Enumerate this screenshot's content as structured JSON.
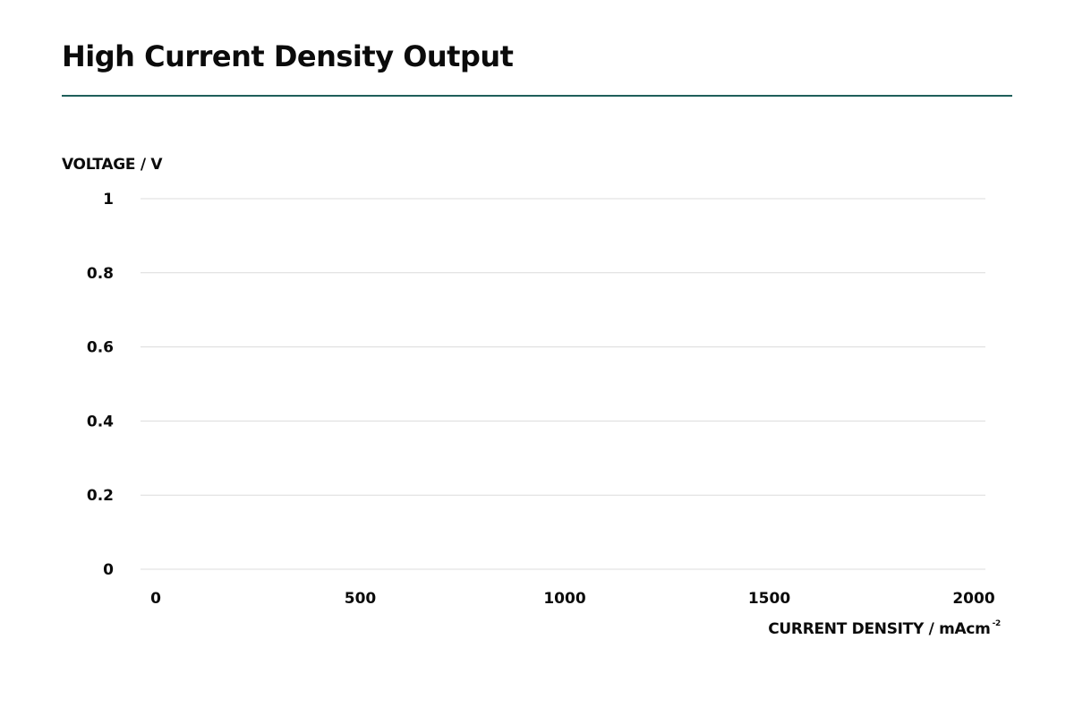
{
  "page": {
    "title": "High Current Density Output",
    "rule_color": "#1f5f5b"
  },
  "chart_data": {
    "type": "line",
    "title": "High Current Density Output",
    "xlabel": "CURRENT DENSITY / mAcm",
    "xlabel_superscript": "-2",
    "ylabel": "VOLTAGE / V",
    "xlim": [
      0,
      2000
    ],
    "ylim": [
      0,
      1
    ],
    "x_ticks": [
      "0",
      "500",
      "1000",
      "1500",
      "2000"
    ],
    "y_ticks": [
      "0",
      "0.2",
      "0.4",
      "0.6",
      "0.8",
      "1"
    ],
    "x_tick_values": [
      0,
      500,
      1000,
      1500,
      2000
    ],
    "y_tick_values": [
      0,
      0.2,
      0.4,
      0.6,
      0.8,
      1
    ],
    "grid": true,
    "grid_color": "#dcdcdc",
    "series": []
  }
}
